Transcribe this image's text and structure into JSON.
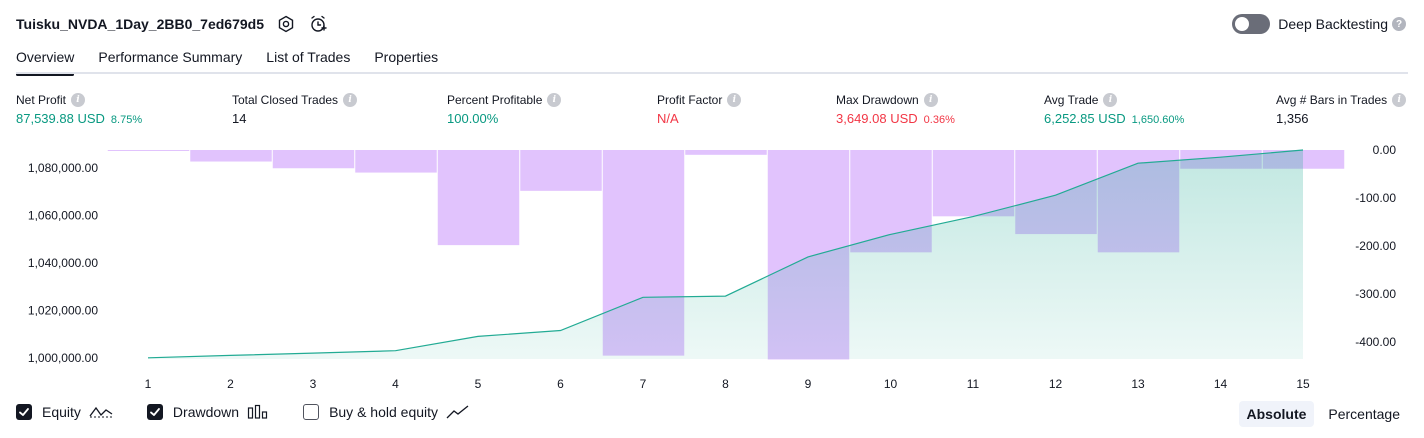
{
  "header": {
    "strategy_name": "Tuisku_NVDA_1Day_2BB0_7ed679d5",
    "deep_backtesting_label": "Deep Backtesting",
    "deep_backtesting_enabled": false
  },
  "tabs": [
    {
      "label": "Overview",
      "active": true
    },
    {
      "label": "Performance Summary",
      "active": false
    },
    {
      "label": "List of Trades",
      "active": false
    },
    {
      "label": "Properties",
      "active": false
    }
  ],
  "metrics": [
    {
      "label": "Net Profit",
      "value": "87,539.88 USD",
      "sub": "8.75%",
      "color": "#089981"
    },
    {
      "label": "Total Closed Trades",
      "value": "14",
      "sub": "",
      "color": "#131722"
    },
    {
      "label": "Percent Profitable",
      "value": "100.00%",
      "sub": "",
      "color": "#089981"
    },
    {
      "label": "Profit Factor",
      "value": "N/A",
      "sub": "",
      "color": "#f23645"
    },
    {
      "label": "Max Drawdown",
      "value": "3,649.08 USD",
      "sub": "0.36%",
      "color": "#f23645"
    },
    {
      "label": "Avg Trade",
      "value": "6,252.85 USD",
      "sub": "1,650.60%",
      "color": "#089981"
    },
    {
      "label": "Avg # Bars in Trades",
      "value": "1,356",
      "sub": "",
      "color": "#131722"
    }
  ],
  "legend": {
    "equity_label": "Equity",
    "equity_checked": true,
    "drawdown_label": "Drawdown",
    "drawdown_checked": true,
    "buyhold_label": "Buy & hold equity",
    "buyhold_checked": false
  },
  "modes": {
    "absolute_label": "Absolute",
    "percentage_label": "Percentage",
    "active": "Absolute"
  },
  "chart_data": {
    "type": "bar+area",
    "x": [
      1,
      2,
      3,
      4,
      5,
      6,
      7,
      8,
      9,
      10,
      11,
      12,
      13,
      14,
      15
    ],
    "x_tick_labels": [
      "1",
      "2",
      "3",
      "4",
      "5",
      "6",
      "7",
      "8",
      "9",
      "10",
      "11",
      "12",
      "13",
      "14",
      "15"
    ],
    "left_axis": {
      "ticks": [
        1000000,
        1020000,
        1040000,
        1060000,
        1080000
      ],
      "tick_labels": [
        "1,000,000.00",
        "1,020,000.00",
        "1,040,000.00",
        "1,060,000.00",
        "1,080,000.00"
      ],
      "range": [
        999500,
        1087540
      ]
    },
    "right_axis": {
      "ticks": [
        0,
        -100,
        -200,
        -300,
        -400
      ],
      "tick_labels": [
        "0.00",
        "-100.00",
        "-200.00",
        "-300.00",
        "-400.00"
      ],
      "range": [
        -435,
        0
      ]
    },
    "series": [
      {
        "name": "Equity",
        "type": "area",
        "axis": "left",
        "color": "#22ab94",
        "values": [
          1000000,
          1001000,
          1002000,
          1003000,
          1009000,
          1011500,
          1025500,
          1026000,
          1042500,
          1052000,
          1059500,
          1068500,
          1082000,
          1084500,
          1087540
        ]
      },
      {
        "name": "Drawdown",
        "type": "bar",
        "axis": "right",
        "color": "#e1c3fd",
        "values": [
          -1,
          -24,
          -38,
          -47,
          -198,
          -85,
          -428,
          -10,
          -436,
          -213,
          -138,
          -175,
          -213,
          -39,
          -39
        ]
      }
    ],
    "grid": false
  }
}
